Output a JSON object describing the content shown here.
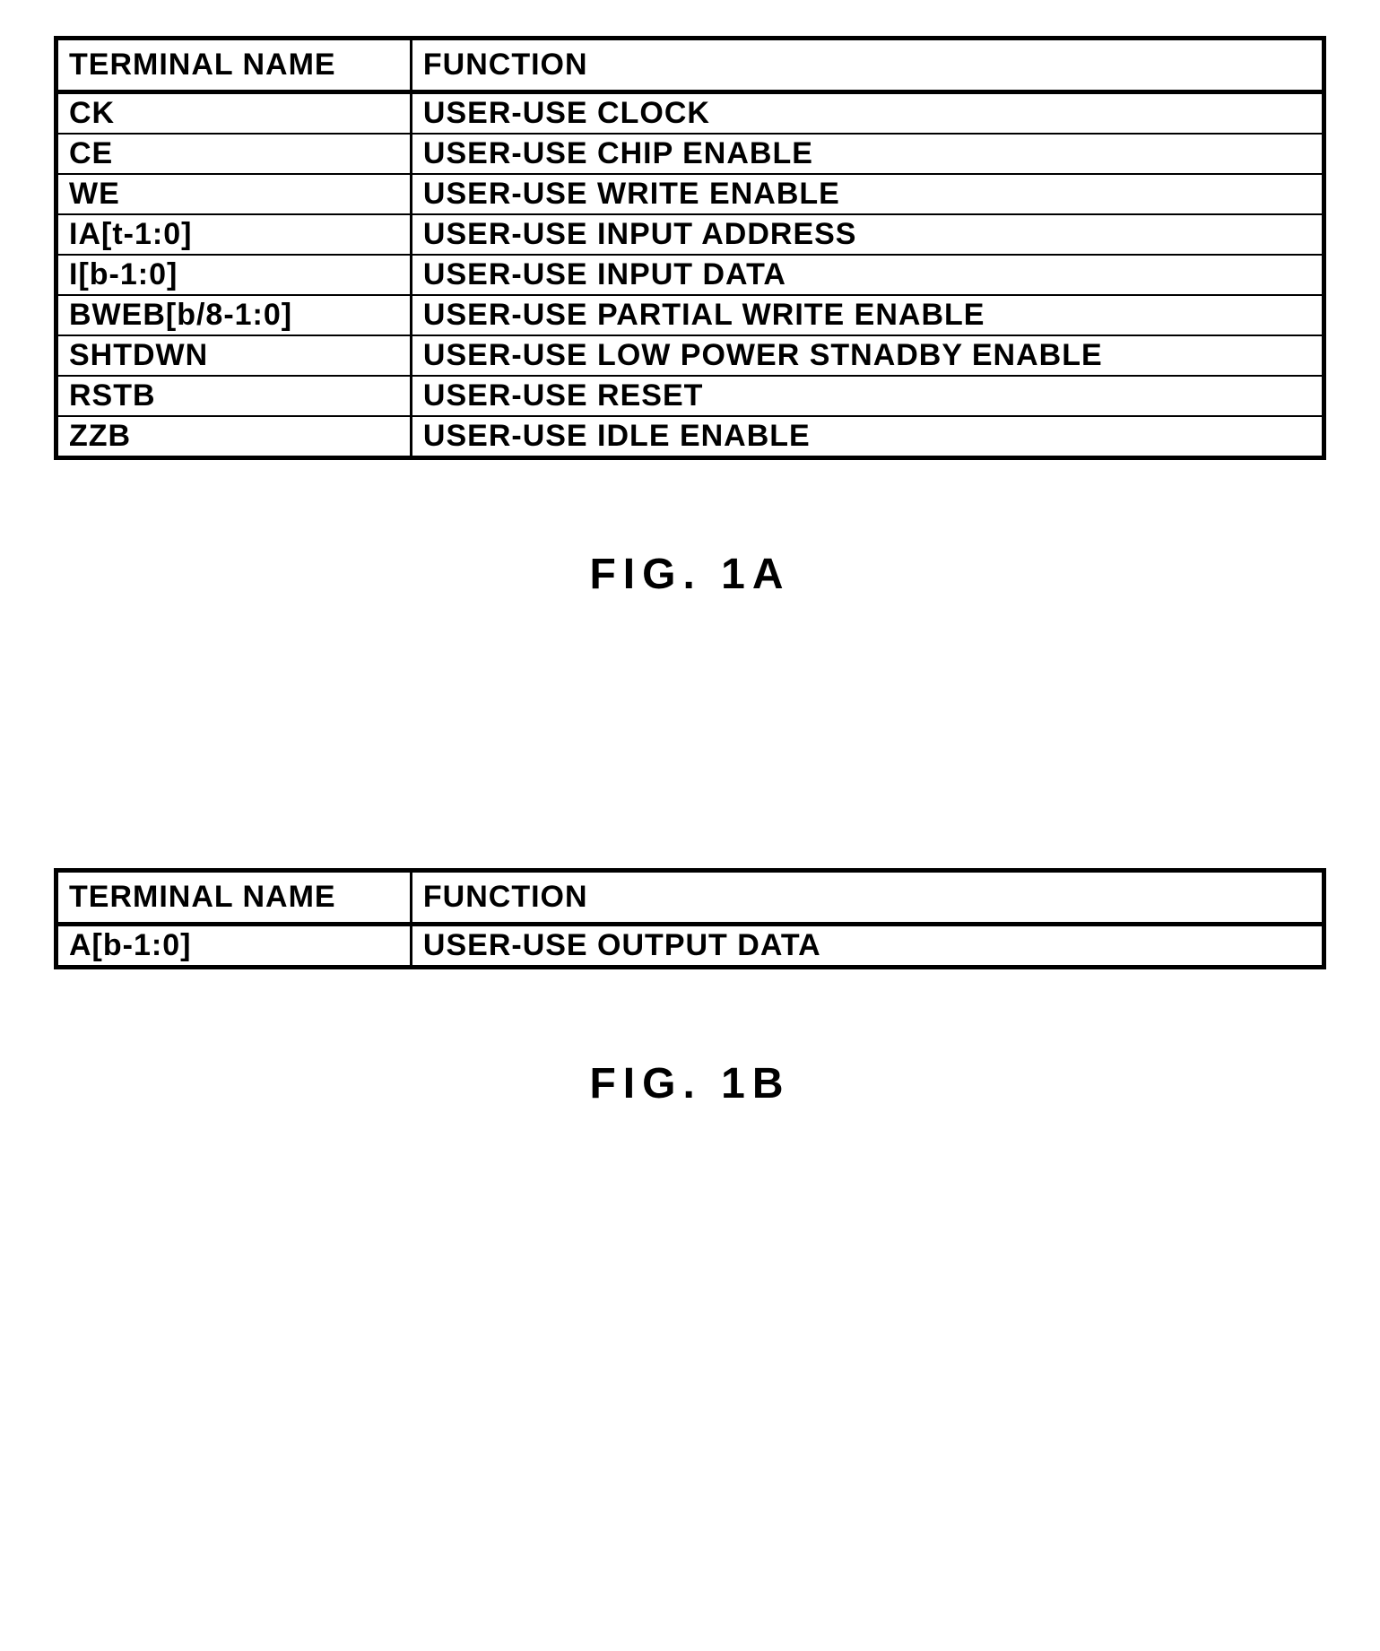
{
  "table_a": {
    "headers": {
      "terminal": "TERMINAL NAME",
      "function": "FUNCTION"
    },
    "rows": [
      {
        "terminal": "CK",
        "function": "USER-USE CLOCK"
      },
      {
        "terminal": "CE",
        "function": "USER-USE CHIP ENABLE"
      },
      {
        "terminal": "WE",
        "function": "USER-USE WRITE ENABLE"
      },
      {
        "terminal": "IA[t-1:0]",
        "function": "USER-USE INPUT ADDRESS"
      },
      {
        "terminal": "I[b-1:0]",
        "function": "USER-USE INPUT DATA"
      },
      {
        "terminal": "BWEB[b/8-1:0]",
        "function": "USER-USE PARTIAL WRITE ENABLE"
      },
      {
        "terminal": "SHTDWN",
        "function": "USER-USE LOW POWER STNADBY ENABLE"
      },
      {
        "terminal": "RSTB",
        "function": "USER-USE RESET"
      },
      {
        "terminal": "ZZB",
        "function": "USER-USE IDLE ENABLE"
      }
    ]
  },
  "figure_a_caption": "FIG. 1A",
  "table_b": {
    "headers": {
      "terminal": "TERMINAL NAME",
      "function": "FUNCTION"
    },
    "rows": [
      {
        "terminal": "A[b-1:0]",
        "function": "USER-USE OUTPUT DATA"
      }
    ]
  },
  "figure_b_caption": "FIG. 1B",
  "styling": {
    "background_color": "#ffffff",
    "border_color": "#000000",
    "outer_border_width": 5,
    "header_border_bottom_width": 5,
    "vertical_divider_width": 3,
    "row_divider_width": 2,
    "cell_fontsize": 34,
    "caption_fontsize": 48,
    "col_widths": {
      "terminal": "28%",
      "function": "72%"
    }
  }
}
